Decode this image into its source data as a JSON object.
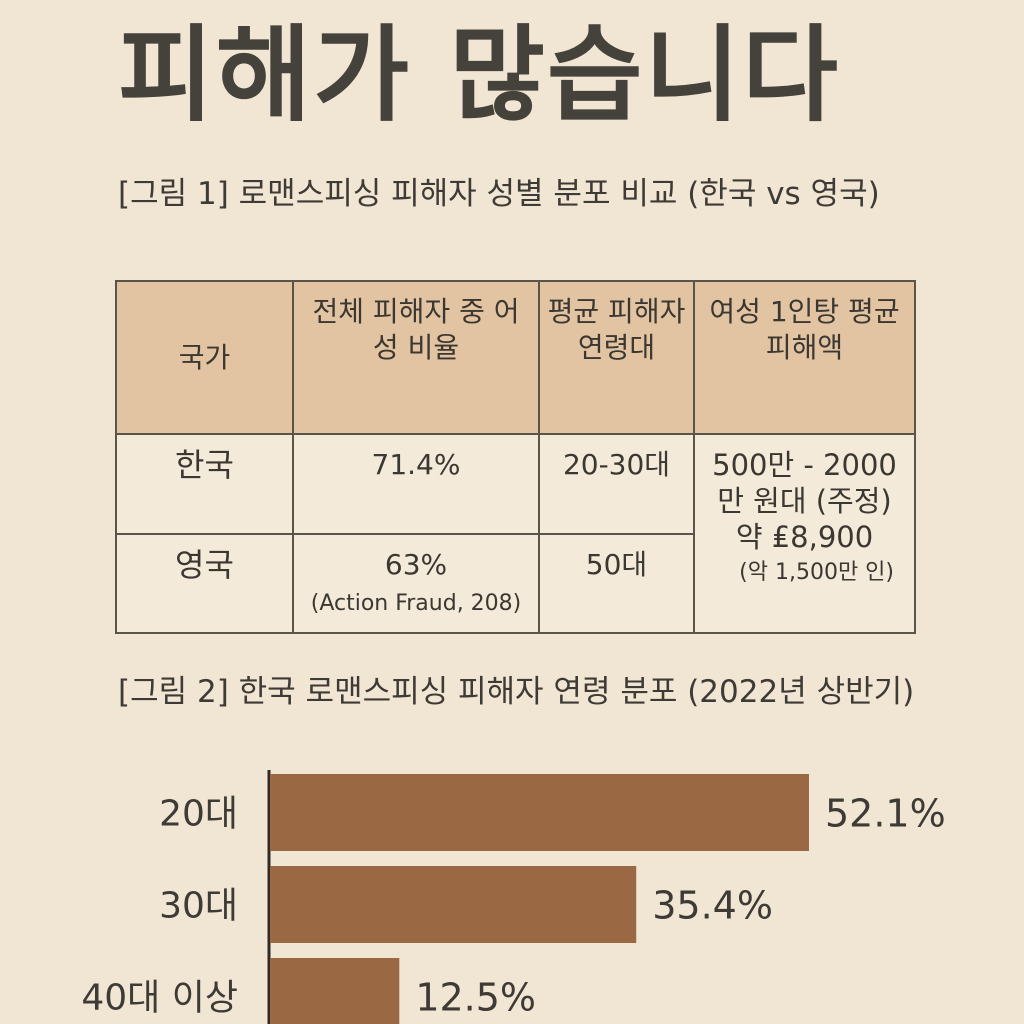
{
  "headline": "피해가 많습니다",
  "table_caption": "[그림 1] 로맨스피싱 피해자 성별 분포 비교 (한국 vs 영국)",
  "table": {
    "headers": [
      "국가",
      "전체 피해자 중 어성 비율",
      "평균 피해자 연령대",
      "여성 1인탕 평균 피해액"
    ],
    "rows": [
      {
        "country": "한국",
        "female_ratio": "71.4%",
        "age_group": "20-30대",
        "damage": "500만 - 2000만 원대 (주정)"
      },
      {
        "country": "영국",
        "female_ratio": "63%",
        "ratio_source": "(Action Fraud, 208)",
        "age_group": "50대",
        "damage": "약 ₤8,900",
        "damage_sub": "(악 1,500만 인)"
      }
    ]
  },
  "chart_caption": "[그림 2] 한국 로맨스피싱 피해자 연령 분포 (2022년 상반기)",
  "chart_data": {
    "type": "bar",
    "orientation": "horizontal",
    "categories": [
      "20대",
      "30대",
      "40대 이상"
    ],
    "values": [
      52.1,
      35.4,
      12.5
    ],
    "value_labels": [
      "52.1%",
      "35.4%",
      "12.5%"
    ],
    "bar_color": "#9a6843",
    "xlim": [
      0,
      60
    ],
    "title": "",
    "xlabel": "",
    "ylabel": ""
  }
}
